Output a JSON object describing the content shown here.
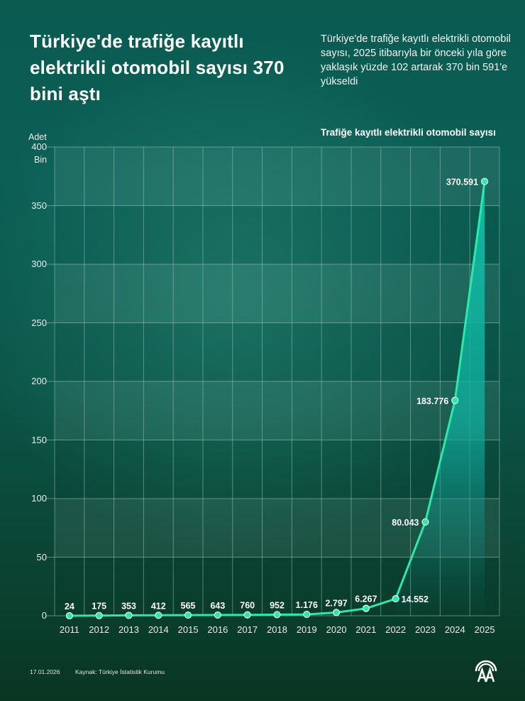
{
  "header": {
    "title": "Türkiye'de trafiğe kayıtlı elektrikli otomobil sayısı 370 bini aştı",
    "subtitle": "Türkiye'de trafiğe kayıtlı elektrikli otomobil sayısı, 2025 itibarıyla bir önceki yıla göre yaklaşık yüzde 102 artarak 370 bin 591'e yükseldi"
  },
  "chart": {
    "title": "Trafiğe kayıtlı elektrikli otomobil sayısı",
    "y_unit_top": "Adet",
    "y_unit_bottom": "Bin",
    "y_ticks": [
      "400",
      "350",
      "300",
      "250",
      "200",
      "150",
      "100",
      "50",
      "0"
    ],
    "x_ticks": [
      "2011",
      "2012",
      "2013",
      "2014",
      "2015",
      "2016",
      "2017",
      "2018",
      "2019",
      "2020",
      "2021",
      "2022",
      "2023",
      "2024",
      "2025"
    ],
    "value_labels": [
      "24",
      "175",
      "353",
      "412",
      "565",
      "643",
      "760",
      "952",
      "1.176",
      "2.797",
      "6.267",
      "14.552",
      "80.043",
      "183.776",
      "370.591"
    ]
  },
  "colors": {
    "line": "#2ee8a8",
    "fill": "#10b8a2",
    "grid": "#9fc9bd",
    "background_top": "#0a5a50",
    "background_bottom": "#0a3523"
  },
  "footer": {
    "date": "17.01.2026",
    "source": "Kaynak: Türkiye İstatistik Kurumu",
    "logo": "aa-logo-icon"
  },
  "chart_data": {
    "type": "line",
    "title": "Trafiğe kayıtlı elektrikli otomobil sayısı",
    "xlabel": "",
    "ylabel": "Adet (Bin)",
    "x": [
      2011,
      2012,
      2013,
      2014,
      2015,
      2016,
      2017,
      2018,
      2019,
      2020,
      2021,
      2022,
      2023,
      2024,
      2025
    ],
    "values": [
      24,
      175,
      353,
      412,
      565,
      643,
      760,
      952,
      1176,
      2797,
      6267,
      14552,
      80043,
      183776,
      370591
    ],
    "series": [
      {
        "name": "Trafiğe kayıtlı elektrikli otomobil sayısı",
        "values": [
          24,
          175,
          353,
          412,
          565,
          643,
          760,
          952,
          1176,
          2797,
          6267,
          14552,
          80043,
          183776,
          370591
        ]
      }
    ],
    "y_axis_unit": "thousand",
    "ylim": [
      0,
      400
    ],
    "yticks": [
      0,
      50,
      100,
      150,
      200,
      250,
      300,
      350,
      400
    ],
    "grid": true,
    "legend": "none"
  }
}
